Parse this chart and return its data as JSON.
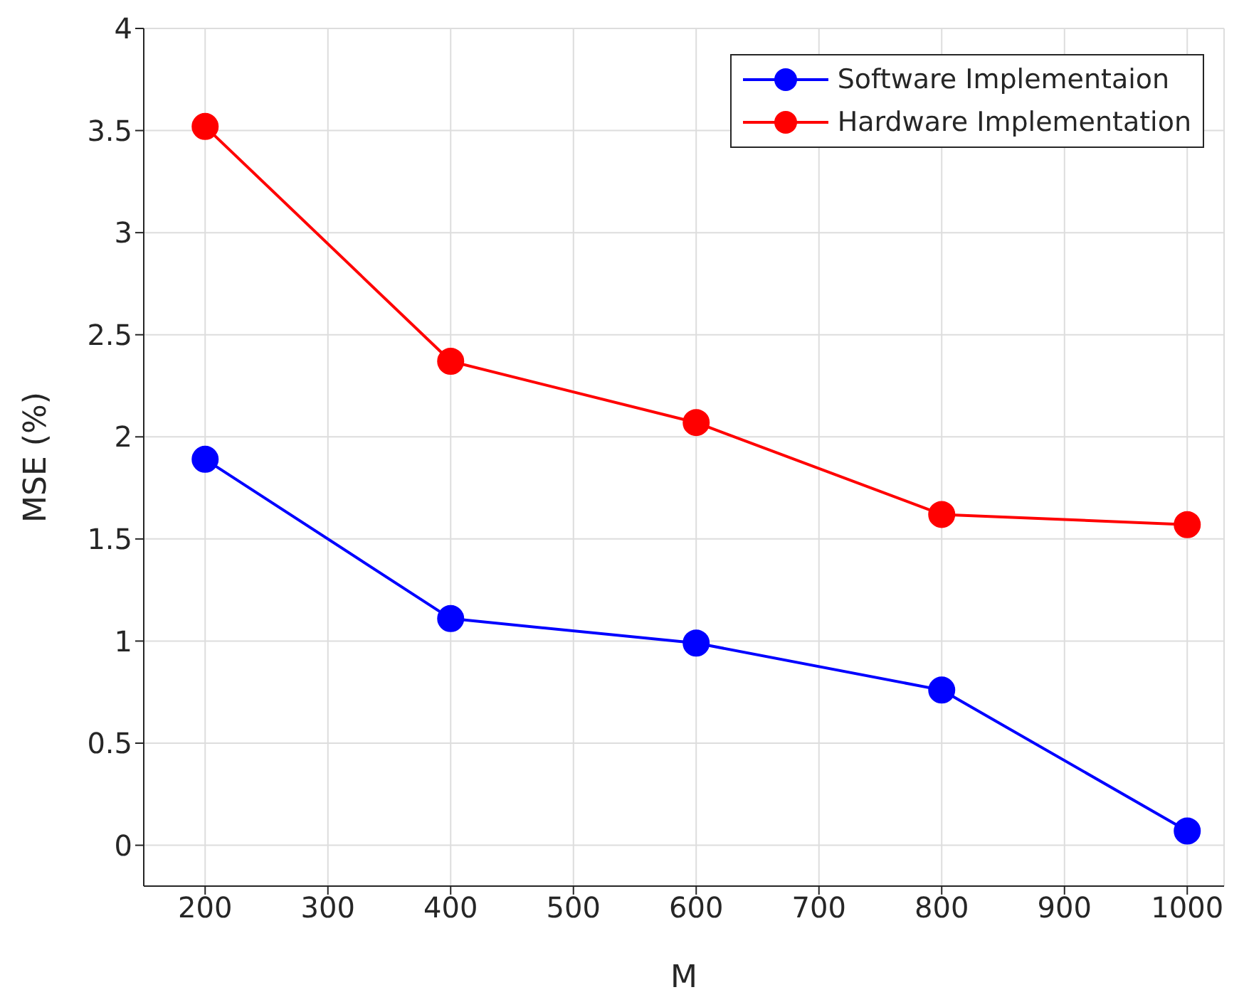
{
  "chart_data": {
    "type": "line",
    "xlabel": "M",
    "ylabel": "MSE (%)",
    "x": [
      200,
      400,
      600,
      800,
      1000
    ],
    "series": [
      {
        "name": "Software Implementaion",
        "color": "#0000ff",
        "values": [
          1.89,
          1.11,
          0.99,
          0.76,
          0.07
        ]
      },
      {
        "name": "Hardware Implementation",
        "color": "#ff0000",
        "values": [
          3.52,
          2.37,
          2.07,
          1.62,
          1.57
        ]
      }
    ],
    "xlim": [
      150,
      1030
    ],
    "xticks": [
      200,
      300,
      400,
      500,
      600,
      700,
      800,
      900,
      1000
    ],
    "ylim": [
      -0.2,
      4
    ],
    "yticks": [
      0,
      0.5,
      1,
      1.5,
      2,
      2.5,
      3,
      3.5,
      4
    ],
    "grid": true,
    "legend": "top right",
    "marker": "circle",
    "line_style": "solid"
  }
}
